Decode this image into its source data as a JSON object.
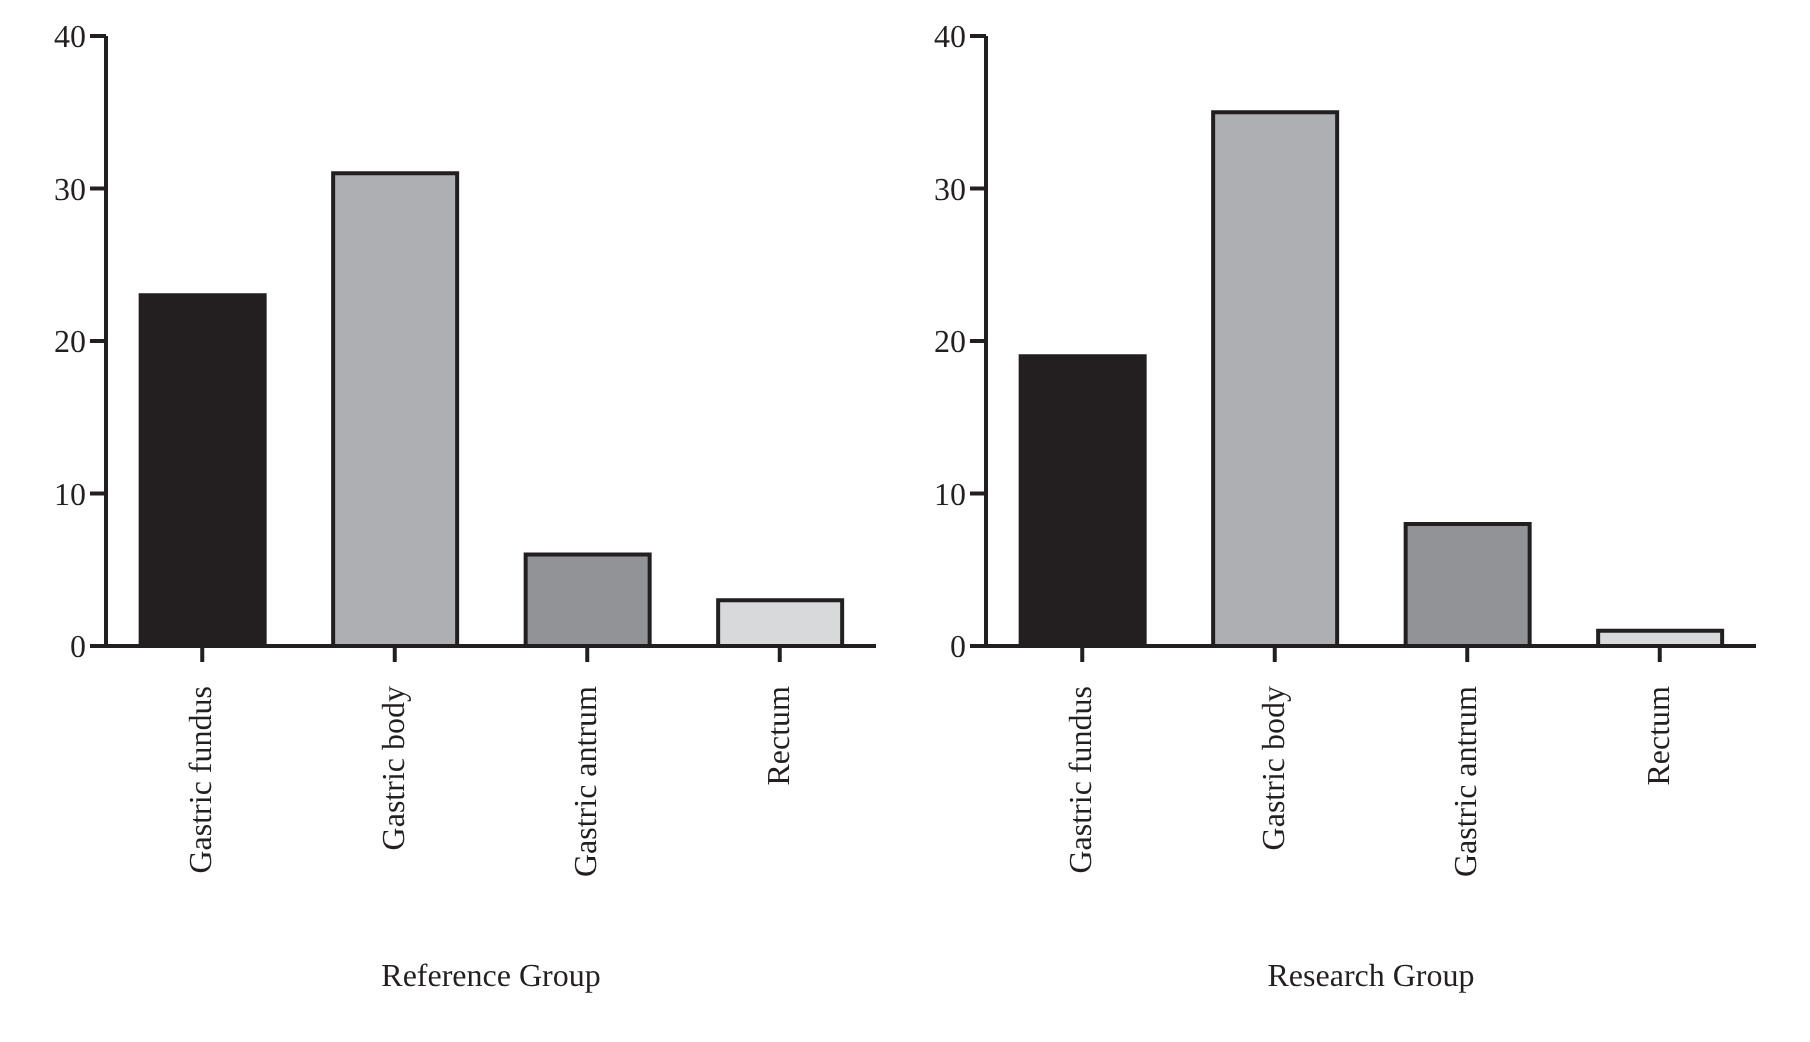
{
  "chart_data": [
    {
      "type": "bar",
      "xlabel": "Reference Group",
      "categories": [
        "Gastric fundus",
        "Gastric body",
        "Gastric antrum",
        "Rectum"
      ],
      "values": [
        23,
        31,
        6,
        3
      ],
      "colors": [
        "#231f20",
        "#aeafb2",
        "#929396",
        "#d8d9da"
      ],
      "ylim": [
        0,
        40
      ],
      "yticks": [
        0,
        10,
        20,
        30,
        40
      ],
      "grid": false,
      "legend": false
    },
    {
      "type": "bar",
      "xlabel": "Research Group",
      "categories": [
        "Gastric fundus",
        "Gastric body",
        "Gastric antrum",
        "Rectum"
      ],
      "values": [
        19,
        35,
        8,
        1
      ],
      "colors": [
        "#231f20",
        "#aeafb2",
        "#929396",
        "#d8d9da"
      ],
      "ylim": [
        0,
        40
      ],
      "yticks": [
        0,
        10,
        20,
        30,
        40
      ],
      "grid": false,
      "legend": false
    }
  ]
}
